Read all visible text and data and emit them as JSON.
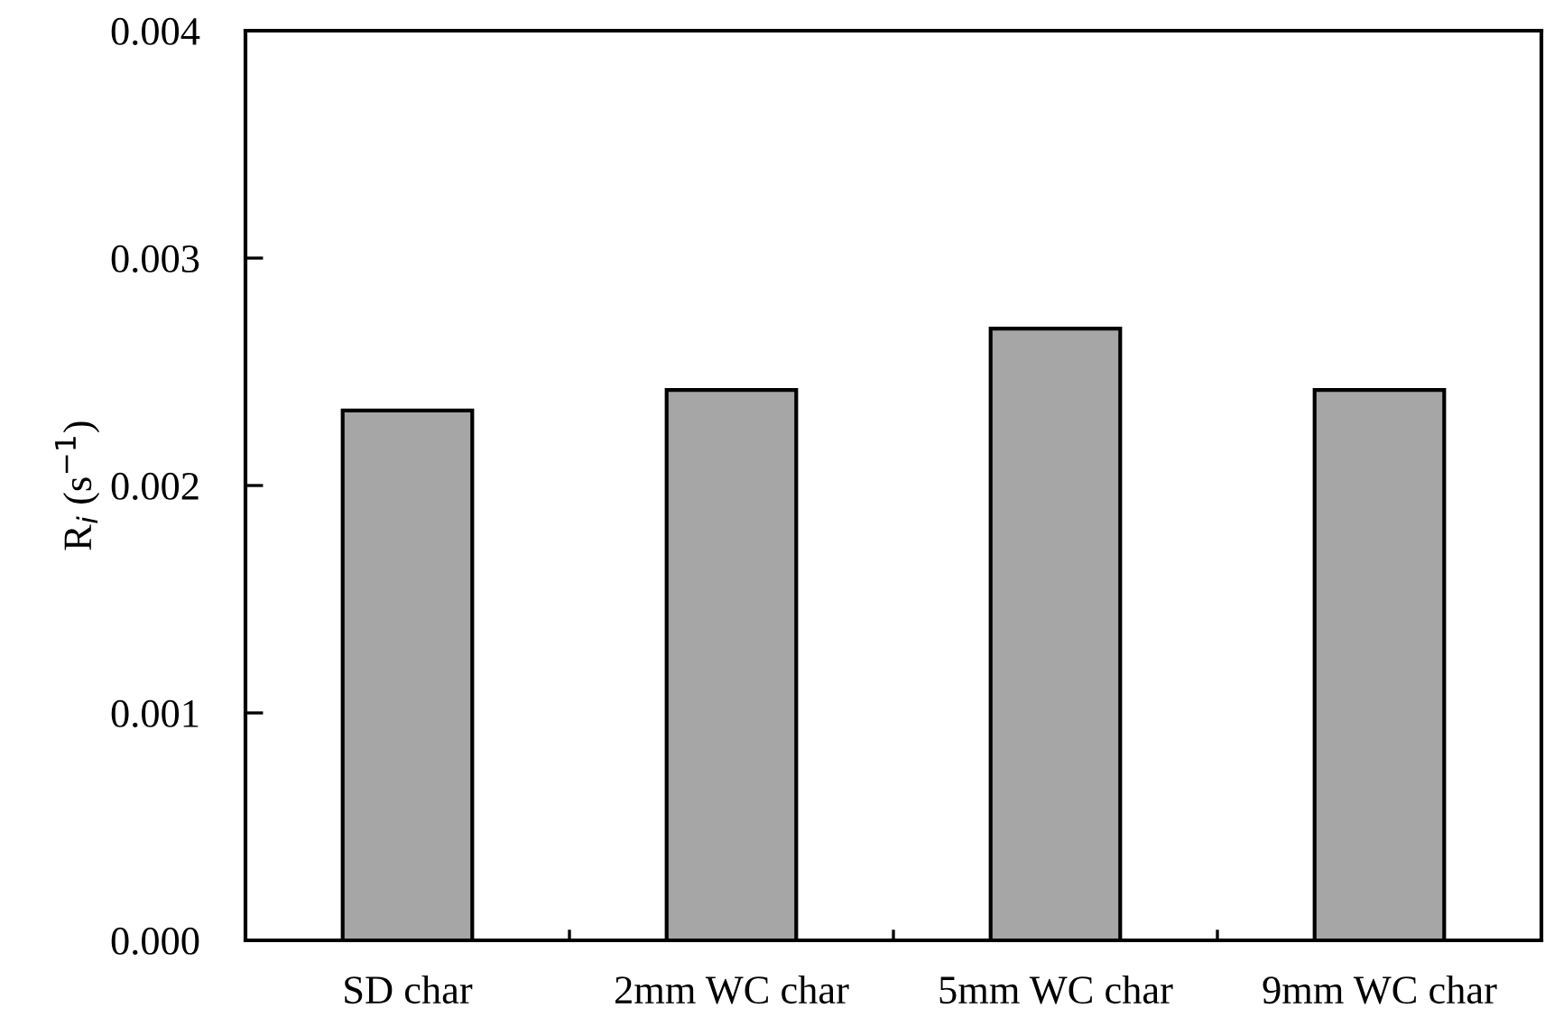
{
  "chart_data": {
    "type": "bar",
    "ylabel": "R$_{i}$ (s$^{−1}$)",
    "categories": [
      "SD char",
      "2mm WC char",
      "5mm WC char",
      "9mm WC char"
    ],
    "values": [
      0.00233,
      0.00242,
      0.00269,
      0.00242
    ],
    "color": "#a6a6a6",
    "ylim": [
      0,
      0.004
    ],
    "yticks": [
      {
        "value": 0,
        "label": "0.000"
      },
      {
        "value": 0.001,
        "label": "0.001"
      },
      {
        "value": 0.002,
        "label": "0.002"
      },
      {
        "value": 0.003,
        "label": "0.003"
      },
      {
        "value": 0.004,
        "label": "0.004"
      }
    ],
    "grid": false,
    "legend": false
  }
}
